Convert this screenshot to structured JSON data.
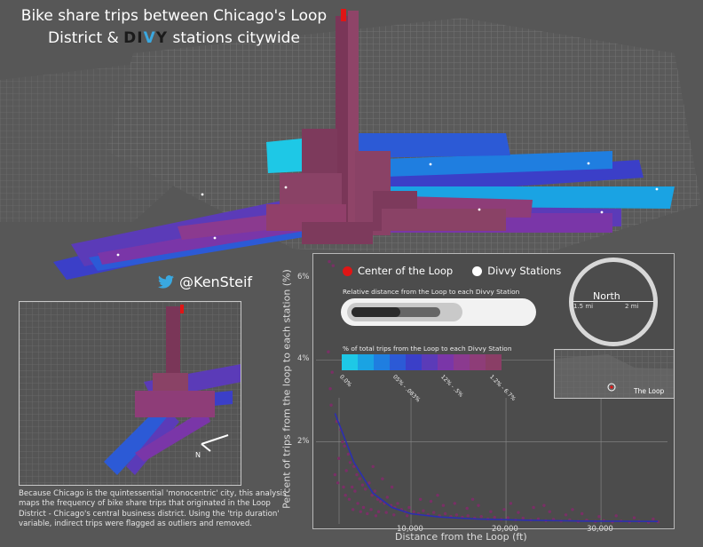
{
  "title": {
    "line1": "Bike share trips between Chicago's Loop",
    "line2_prefix": "District & ",
    "brand_a": "DI",
    "brand_v": "V",
    "brand_b": "Y",
    "line2_suffix": " stations citywide"
  },
  "twitter": {
    "handle": "@KenSteif",
    "icon": "twitter-bird-icon"
  },
  "note": "Because Chicago is the quintessential 'monocentric' city, this analysis maps the frequency of bike share trips that originated in the Loop District - Chicago's central business district.  Using the 'trip duration' variable, indirect trips were flagged as outliers and removed.",
  "legend": {
    "center": "Center of the Loop",
    "stations": "Divvy Stations",
    "center_color": "#e01515",
    "stations_color": "#ffffff",
    "relative_distance_label": "Relative distance from the Loop to each Divvy Station",
    "pct_label": "% of total trips from the Loop to each Divvy Station",
    "swatch_colors": [
      "#1ec8e6",
      "#1aa3e3",
      "#1f7ee0",
      "#2c5ad6",
      "#3b3fc8",
      "#5b3bb8",
      "#7a36a8",
      "#8b3a8f",
      "#8e3d78",
      "#8a3e66"
    ],
    "swatch_labels": [
      "0.0%",
      "05% - .083%",
      "12% - .5%",
      "1.2% - 6.7%"
    ]
  },
  "compass": {
    "north": "North",
    "left": "1.5 mi",
    "right": "2 mi"
  },
  "minimap": {
    "label": "The Loop"
  },
  "chart_data": {
    "type": "scatter",
    "xlabel": "Distance from the Loop (ft)",
    "ylabel": "Percent of trips from the loop to each station (%)",
    "xlim": [
      0,
      37000
    ],
    "ylim": [
      0,
      6.5
    ],
    "x_ticks": [
      10000,
      20000,
      30000
    ],
    "x_tick_labels": [
      "10,000",
      "20,000",
      "30,000"
    ],
    "y_ticks": [
      2,
      4,
      6
    ],
    "y_tick_labels": [
      "2%",
      "4%",
      "6%"
    ],
    "grid": true,
    "point_color": "#7a2f66",
    "trend_color": "#2b2fb0",
    "points": [
      [
        1400,
        6.4
      ],
      [
        1800,
        6.3
      ],
      [
        1300,
        4.2
      ],
      [
        1700,
        3.7
      ],
      [
        1500,
        3.3
      ],
      [
        1600,
        2.9
      ],
      [
        2200,
        2.5
      ],
      [
        2600,
        2.3
      ],
      [
        2800,
        2.0
      ],
      [
        3000,
        1.9
      ],
      [
        2400,
        1.6
      ],
      [
        3400,
        1.7
      ],
      [
        3600,
        1.5
      ],
      [
        3200,
        1.3
      ],
      [
        4000,
        1.4
      ],
      [
        4300,
        1.2
      ],
      [
        4600,
        1.1
      ],
      [
        3800,
        0.9
      ],
      [
        4100,
        0.8
      ],
      [
        4900,
        0.95
      ],
      [
        5200,
        0.85
      ],
      [
        5600,
        1.0
      ],
      [
        5900,
        0.7
      ],
      [
        6200,
        0.8
      ],
      [
        6500,
        0.6
      ],
      [
        6800,
        0.55
      ],
      [
        7200,
        0.5
      ],
      [
        7500,
        0.65
      ],
      [
        7900,
        0.45
      ],
      [
        8300,
        0.4
      ],
      [
        8600,
        0.5
      ],
      [
        9000,
        0.35
      ],
      [
        9400,
        0.3
      ],
      [
        9800,
        0.4
      ],
      [
        10300,
        0.3
      ],
      [
        10800,
        0.25
      ],
      [
        11300,
        0.32
      ],
      [
        11800,
        0.22
      ],
      [
        12400,
        0.28
      ],
      [
        13000,
        0.2
      ],
      [
        13600,
        0.25
      ],
      [
        14200,
        0.18
      ],
      [
        14800,
        0.22
      ],
      [
        15400,
        0.16
      ],
      [
        16000,
        0.2
      ],
      [
        16700,
        0.14
      ],
      [
        17400,
        0.18
      ],
      [
        18100,
        0.12
      ],
      [
        18800,
        0.16
      ],
      [
        19500,
        0.11
      ],
      [
        20200,
        0.15
      ],
      [
        21000,
        0.1
      ],
      [
        21800,
        0.14
      ],
      [
        22600,
        0.09
      ],
      [
        23400,
        0.12
      ],
      [
        24200,
        0.08
      ],
      [
        25000,
        0.11
      ],
      [
        25800,
        0.07
      ],
      [
        26700,
        0.1
      ],
      [
        27600,
        0.06
      ],
      [
        28500,
        0.09
      ],
      [
        29400,
        0.06
      ],
      [
        30300,
        0.08
      ],
      [
        31200,
        0.05
      ],
      [
        32100,
        0.07
      ],
      [
        33000,
        0.05
      ],
      [
        34000,
        0.06
      ],
      [
        35000,
        0.04
      ],
      [
        36000,
        0.05
      ],
      [
        2000,
        1.2
      ],
      [
        2900,
        0.9
      ],
      [
        3500,
        0.6
      ],
      [
        4400,
        0.5
      ],
      [
        5000,
        0.4
      ],
      [
        5800,
        0.35
      ],
      [
        6600,
        0.3
      ],
      [
        7400,
        0.28
      ],
      [
        8200,
        0.22
      ],
      [
        9600,
        0.2
      ],
      [
        11000,
        0.6
      ],
      [
        12100,
        0.55
      ],
      [
        13400,
        0.45
      ],
      [
        14600,
        0.5
      ],
      [
        15900,
        0.38
      ],
      [
        17100,
        0.45
      ],
      [
        18400,
        0.3
      ],
      [
        19800,
        0.35
      ],
      [
        21300,
        0.28
      ],
      [
        22900,
        0.4
      ],
      [
        24600,
        0.3
      ],
      [
        26300,
        0.22
      ],
      [
        28000,
        0.25
      ],
      [
        29800,
        0.18
      ],
      [
        31600,
        0.2
      ],
      [
        33500,
        0.15
      ],
      [
        35500,
        0.12
      ],
      [
        6000,
        1.4
      ],
      [
        7000,
        1.1
      ],
      [
        8000,
        0.9
      ],
      [
        16500,
        0.6
      ],
      [
        20500,
        0.5
      ],
      [
        24000,
        0.45
      ],
      [
        27000,
        0.35
      ],
      [
        12800,
        0.7
      ],
      [
        2300,
        1.0
      ],
      [
        3100,
        0.7
      ],
      [
        3900,
        0.35
      ],
      [
        4700,
        0.3
      ],
      [
        5400,
        0.25
      ],
      [
        6300,
        0.2
      ]
    ],
    "trend": [
      [
        2000,
        2.7
      ],
      [
        4000,
        1.5
      ],
      [
        6000,
        0.75
      ],
      [
        8000,
        0.4
      ],
      [
        10000,
        0.25
      ],
      [
        13000,
        0.17
      ],
      [
        17000,
        0.12
      ],
      [
        22000,
        0.09
      ],
      [
        28000,
        0.07
      ],
      [
        36000,
        0.06
      ]
    ]
  }
}
